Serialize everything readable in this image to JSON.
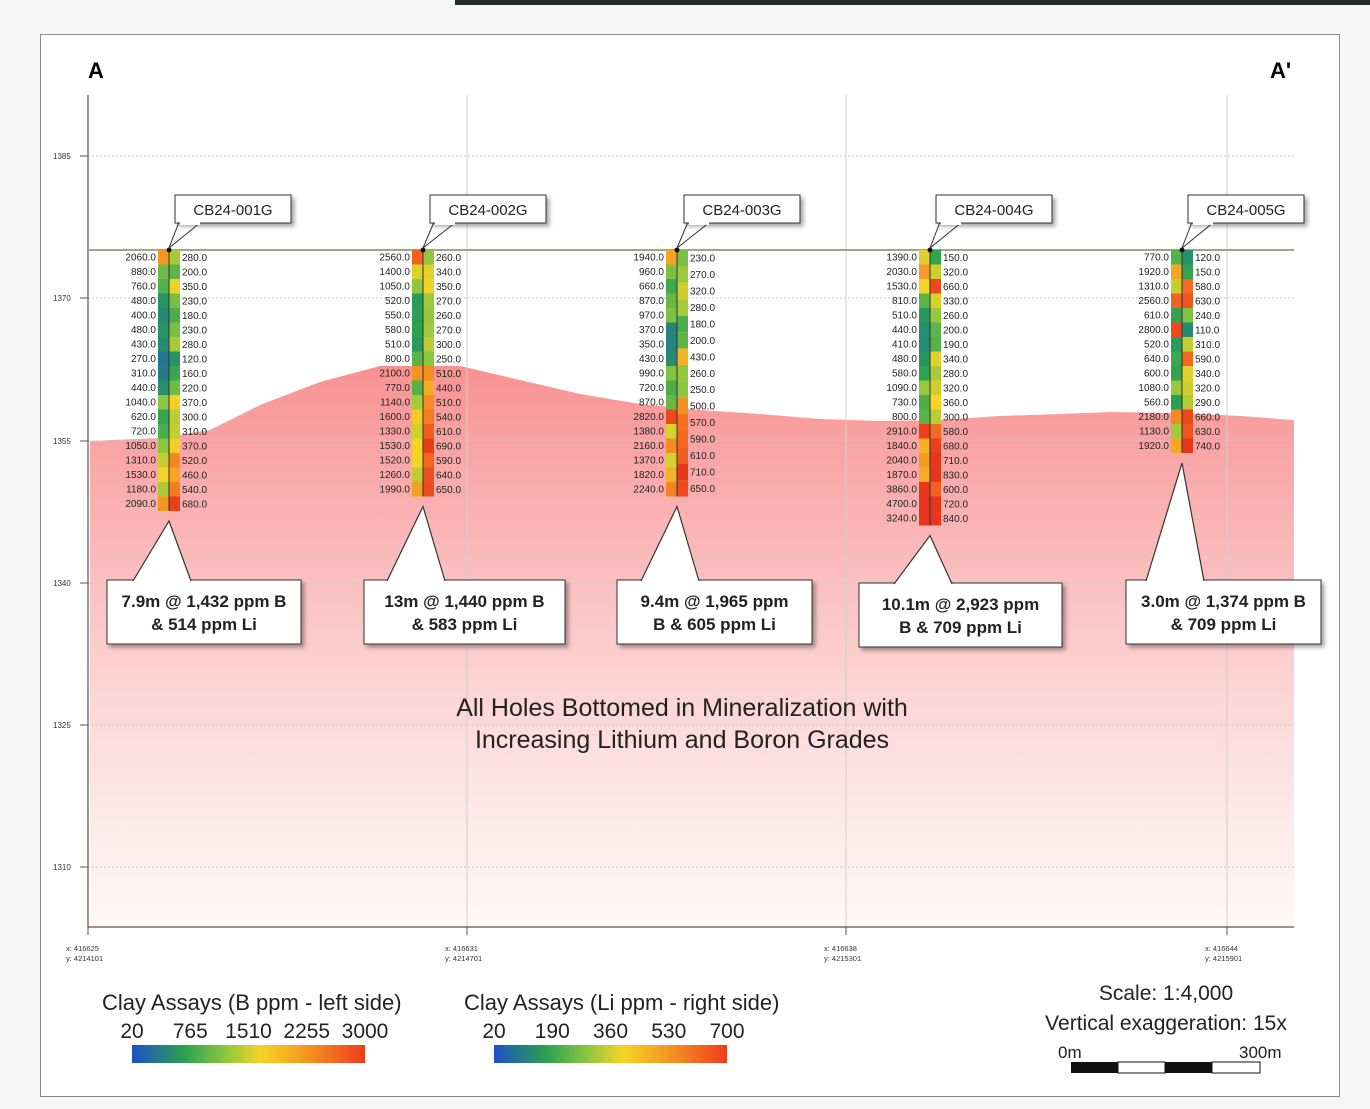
{
  "section": {
    "start_label": "A",
    "end_label": "A'",
    "elevations": [
      "1385",
      "1370",
      "1355",
      "1340",
      "1325",
      "1310"
    ],
    "coords": [
      {
        "x": "x: 416625",
        "y": "y: 4214101"
      },
      {
        "x": "x: 416631",
        "y": "y: 4214701"
      },
      {
        "x": "x: 416638",
        "y": "y: 4215301"
      },
      {
        "x": "x: 416644",
        "y": "y: 4215901"
      }
    ],
    "headline": [
      "All Holes Bottomed in Mineralization with",
      "Increasing Lithium and Boron Grades"
    ]
  },
  "holes": [
    {
      "id": "CB24-001G",
      "boron": [
        "2060.0",
        "880.0",
        "760.0",
        "480.0",
        "400.0",
        "480.0",
        "430.0",
        "270.0",
        "310.0",
        "440.0",
        "1040.0",
        "620.0",
        "720.0",
        "1050.0",
        "1310.0",
        "1530.0",
        "1180.0",
        "2090.0"
      ],
      "lithium": [
        "280.0",
        "200.0",
        "350.0",
        "230.0",
        "180.0",
        "230.0",
        "280.0",
        "120.0",
        "160.0",
        "220.0",
        "370.0",
        "300.0",
        "310.0",
        "370.0",
        "520.0",
        "460.0",
        "540.0",
        "680.0"
      ],
      "callout": [
        "7.9m @ 1,432 ppm B",
        "& 514 ppm Li"
      ]
    },
    {
      "id": "CB24-002G",
      "boron": [
        "2560.0",
        "1400.0",
        "1050.0",
        "520.0",
        "550.0",
        "580.0",
        "510.0",
        "800.0",
        "2100.0",
        "770.0",
        "1140.0",
        "1600.0",
        "1330.0",
        "1530.0",
        "1520.0",
        "1260.0",
        "1990.0"
      ],
      "lithium": [
        "260.0",
        "340.0",
        "350.0",
        "270.0",
        "260.0",
        "270.0",
        "300.0",
        "250.0",
        "510.0",
        "440.0",
        "510.0",
        "540.0",
        "610.0",
        "690.0",
        "590.0",
        "640.0",
        "650.0"
      ],
      "callout": [
        "13m @ 1,440 ppm B",
        "& 583 ppm Li"
      ]
    },
    {
      "id": "CB24-003G",
      "boron": [
        "1940.0",
        "960.0",
        "660.0",
        "870.0",
        "970.0",
        "370.0",
        "350.0",
        "430.0",
        "990.0",
        "720.0",
        "870.0",
        "2820.0",
        "1380.0",
        "2160.0",
        "1370.0",
        "1820.0",
        "2240.0"
      ],
      "lithium": [
        "230.0",
        "270.0",
        "320.0",
        "280.0",
        "180.0",
        "200.0",
        "430.0",
        "260.0",
        "250.0",
        "500.0",
        "570.0",
        "590.0",
        "610.0",
        "710.0",
        "650.0"
      ],
      "callout": [
        "9.4m @  1,965 ppm",
        "B & 605 ppm Li"
      ]
    },
    {
      "id": "CB24-004G",
      "boron": [
        "1390.0",
        "2030.0",
        "1530.0",
        "810.0",
        "510.0",
        "440.0",
        "410.0",
        "480.0",
        "580.0",
        "1090.0",
        "730.0",
        "800.0",
        "2910.0",
        "1840.0",
        "2040.0",
        "1870.0",
        "3860.0",
        "4700.0",
        "3240.0"
      ],
      "lithium": [
        "150.0",
        "320.0",
        "660.0",
        "330.0",
        "260.0",
        "200.0",
        "190.0",
        "340.0",
        "280.0",
        "320.0",
        "360.0",
        "300.0",
        "580.0",
        "680.0",
        "710.0",
        "830.0",
        "600.0",
        "720.0",
        "840.0"
      ],
      "callout": [
        "10.1m @ 2,923 ppm",
        "B & 709 ppm Li"
      ]
    },
    {
      "id": "CB24-005G",
      "boron": [
        "770.0",
        "1920.0",
        "1310.0",
        "2560.0",
        "610.0",
        "2800.0",
        "520.0",
        "640.0",
        "600.0",
        "1080.0",
        "560.0",
        "2180.0",
        "1130.0",
        "1920.0"
      ],
      "lithium": [
        "120.0",
        "150.0",
        "580.0",
        "630.0",
        "240.0",
        "110.0",
        "310.0",
        "590.0",
        "340.0",
        "320.0",
        "290.0",
        "660.0",
        "630.0",
        "740.0"
      ],
      "callout": [
        "3.0m @ 1,374 ppm B",
        "& 709 ppm Li"
      ]
    }
  ],
  "legend": {
    "boron_title": "Clay Assays (B ppm - left side)",
    "boron_ticks": [
      "20",
      "765",
      "1510",
      "2255",
      "3000"
    ],
    "lithium_title": "Clay Assays (Li ppm - right side)",
    "lithium_ticks": [
      "20",
      "190",
      "360",
      "530",
      "700"
    ],
    "colors": [
      "#1f4fc8",
      "#2aa052",
      "#8cc63f",
      "#f5c426",
      "#f5a623",
      "#f36b21",
      "#e8361c"
    ]
  },
  "scale": {
    "scale_text": "Scale: 1:4,000",
    "vex_text": "Vertical exaggeration: 15x",
    "bar_start": "0m",
    "bar_end": "300m"
  }
}
